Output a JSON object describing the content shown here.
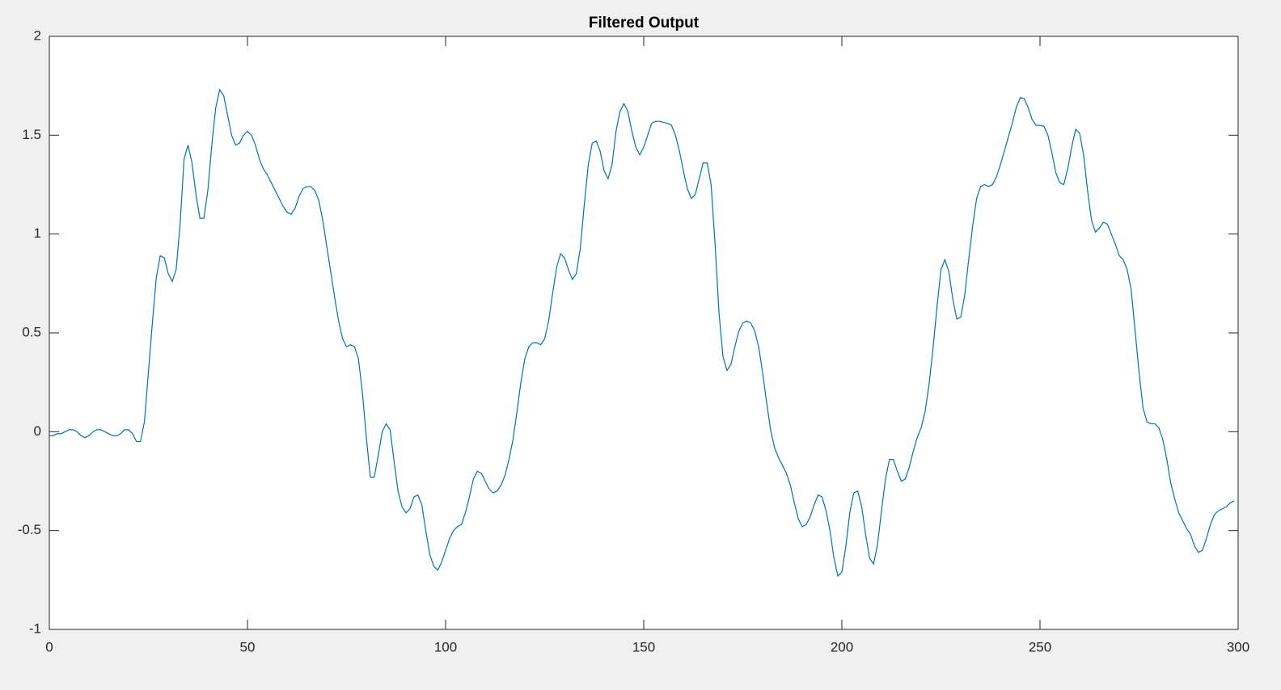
{
  "chart_data": {
    "type": "line",
    "title": "Filtered Output",
    "x": [
      0,
      1,
      2,
      3,
      4,
      5,
      6,
      7,
      8,
      9,
      10,
      11,
      12,
      13,
      14,
      15,
      16,
      17,
      18,
      19,
      20,
      21,
      22,
      23,
      24,
      25,
      26,
      27,
      28,
      29,
      30,
      31,
      32,
      33,
      34,
      35,
      36,
      37,
      38,
      39,
      40,
      41,
      42,
      43,
      44,
      45,
      46,
      47,
      48,
      49,
      50,
      51,
      52,
      53,
      54,
      55,
      56,
      57,
      58,
      59,
      60,
      61,
      62,
      63,
      64,
      65,
      66,
      67,
      68,
      69,
      70,
      71,
      72,
      73,
      74,
      75,
      76,
      77,
      78,
      79,
      80,
      81,
      82,
      83,
      84,
      85,
      86,
      87,
      88,
      89,
      90,
      91,
      92,
      93,
      94,
      95,
      96,
      97,
      98,
      99,
      100,
      101,
      102,
      103,
      104,
      105,
      106,
      107,
      108,
      109,
      110,
      111,
      112,
      113,
      114,
      115,
      116,
      117,
      118,
      119,
      120,
      121,
      122,
      123,
      124,
      125,
      126,
      127,
      128,
      129,
      130,
      131,
      132,
      133,
      134,
      135,
      136,
      137,
      138,
      139,
      140,
      141,
      142,
      143,
      144,
      145,
      146,
      147,
      148,
      149,
      150,
      151,
      152,
      153,
      154,
      155,
      156,
      157,
      158,
      159,
      160,
      161,
      162,
      163,
      164,
      165,
      166,
      167,
      168,
      169,
      170,
      171,
      172,
      173,
      174,
      175,
      176,
      177,
      178,
      179,
      180,
      181,
      182,
      183,
      184,
      185,
      186,
      187,
      188,
      189,
      190,
      191,
      192,
      193,
      194,
      195,
      196,
      197,
      198,
      199,
      200,
      201,
      202,
      203,
      204,
      205,
      206,
      207,
      208,
      209,
      210,
      211,
      212,
      213,
      214,
      215,
      216,
      217,
      218,
      219,
      220,
      221,
      222,
      223,
      224,
      225,
      226,
      227,
      228,
      229,
      230,
      231,
      232,
      233,
      234,
      235,
      236,
      237,
      238,
      239,
      240,
      241,
      242,
      243,
      244,
      245,
      246,
      247,
      248,
      249,
      250,
      251,
      252,
      253,
      254,
      255,
      256,
      257,
      258,
      259,
      260,
      261,
      262,
      263,
      264,
      265,
      266,
      267,
      268,
      269,
      270,
      271,
      272,
      273,
      274,
      275,
      276,
      277,
      278,
      279,
      280,
      281,
      282,
      283,
      284,
      285,
      286,
      287,
      288,
      289,
      290,
      291,
      292,
      293,
      294,
      295,
      296,
      297,
      298,
      299
    ],
    "series": [
      {
        "color": "#0072bd",
        "values": [
          -0.02,
          -0.02,
          -0.01,
          -0.01,
          0,
          0.01,
          0.01,
          0,
          -0.02,
          -0.03,
          -0.02,
          0,
          0.01,
          0.01,
          0,
          -0.01,
          -0.02,
          -0.02,
          -0.01,
          0.01,
          0.01,
          -0.01,
          -0.05,
          -0.05,
          0.05,
          0.3,
          0.55,
          0.78,
          0.89,
          0.88,
          0.8,
          0.76,
          0.82,
          1.05,
          1.38,
          1.45,
          1.36,
          1.2,
          1.08,
          1.08,
          1.22,
          1.45,
          1.64,
          1.73,
          1.7,
          1.6,
          1.5,
          1.45,
          1.46,
          1.5,
          1.52,
          1.5,
          1.45,
          1.38,
          1.33,
          1.3,
          1.26,
          1.22,
          1.18,
          1.14,
          1.11,
          1.1,
          1.13,
          1.19,
          1.23,
          1.24,
          1.24,
          1.22,
          1.17,
          1.07,
          0.94,
          0.81,
          0.68,
          0.56,
          0.47,
          0.43,
          0.44,
          0.43,
          0.37,
          0.2,
          -0.03,
          -0.23,
          -0.23,
          -0.12,
          0,
          0.04,
          0.01,
          -0.15,
          -0.3,
          -0.38,
          -0.41,
          -0.39,
          -0.33,
          -0.32,
          -0.37,
          -0.5,
          -0.62,
          -0.68,
          -0.7,
          -0.66,
          -0.6,
          -0.54,
          -0.5,
          -0.48,
          -0.47,
          -0.41,
          -0.33,
          -0.24,
          -0.2,
          -0.21,
          -0.25,
          -0.29,
          -0.31,
          -0.3,
          -0.27,
          -0.22,
          -0.14,
          -0.04,
          0.1,
          0.25,
          0.37,
          0.43,
          0.45,
          0.45,
          0.44,
          0.47,
          0.56,
          0.7,
          0.83,
          0.9,
          0.88,
          0.82,
          0.77,
          0.8,
          0.93,
          1.15,
          1.35,
          1.46,
          1.47,
          1.42,
          1.32,
          1.28,
          1.35,
          1.52,
          1.62,
          1.66,
          1.62,
          1.52,
          1.44,
          1.4,
          1.44,
          1.5,
          1.56,
          1.57,
          1.57,
          1.565,
          1.56,
          1.55,
          1.5,
          1.42,
          1.32,
          1.23,
          1.18,
          1.2,
          1.28,
          1.36,
          1.36,
          1.25,
          0.95,
          0.6,
          0.38,
          0.31,
          0.34,
          0.43,
          0.51,
          0.55,
          0.56,
          0.55,
          0.51,
          0.43,
          0.3,
          0.15,
          0.01,
          -0.08,
          -0.13,
          -0.17,
          -0.21,
          -0.27,
          -0.36,
          -0.44,
          -0.48,
          -0.47,
          -0.43,
          -0.37,
          -0.32,
          -0.33,
          -0.4,
          -0.5,
          -0.64,
          -0.73,
          -0.71,
          -0.58,
          -0.41,
          -0.31,
          -0.3,
          -0.38,
          -0.52,
          -0.64,
          -0.67,
          -0.57,
          -0.4,
          -0.24,
          -0.14,
          -0.14,
          -0.2,
          -0.25,
          -0.24,
          -0.18,
          -0.1,
          -0.03,
          0.02,
          0.1,
          0.24,
          0.42,
          0.63,
          0.82,
          0.87,
          0.81,
          0.67,
          0.57,
          0.58,
          0.69,
          0.87,
          1.04,
          1.18,
          1.24,
          1.25,
          1.24,
          1.25,
          1.29,
          1.35,
          1.42,
          1.49,
          1.56,
          1.64,
          1.69,
          1.685,
          1.64,
          1.58,
          1.55,
          1.55,
          1.545,
          1.5,
          1.41,
          1.31,
          1.26,
          1.25,
          1.33,
          1.44,
          1.53,
          1.51,
          1.4,
          1.22,
          1.07,
          1.01,
          1.03,
          1.06,
          1.05,
          1,
          0.95,
          0.89,
          0.87,
          0.82,
          0.72,
          0.51,
          0.3,
          0.12,
          0.05,
          0.04,
          0.04,
          0.02,
          -0.04,
          -0.14,
          -0.26,
          -0.34,
          -0.41,
          -0.45,
          -0.49,
          -0.52,
          -0.58,
          -0.61,
          -0.6,
          -0.54,
          -0.47,
          -0.42,
          -0.4,
          -0.39,
          -0.38,
          -0.36,
          -0.35
        ]
      }
    ],
    "xlim": [
      0,
      300
    ],
    "xticks": [
      0,
      50,
      100,
      150,
      200,
      250,
      300
    ],
    "ylim": [
      -1,
      2
    ],
    "yticks": [
      -1,
      -0.5,
      0,
      0.5,
      1,
      1.5,
      2
    ],
    "grid": false
  }
}
